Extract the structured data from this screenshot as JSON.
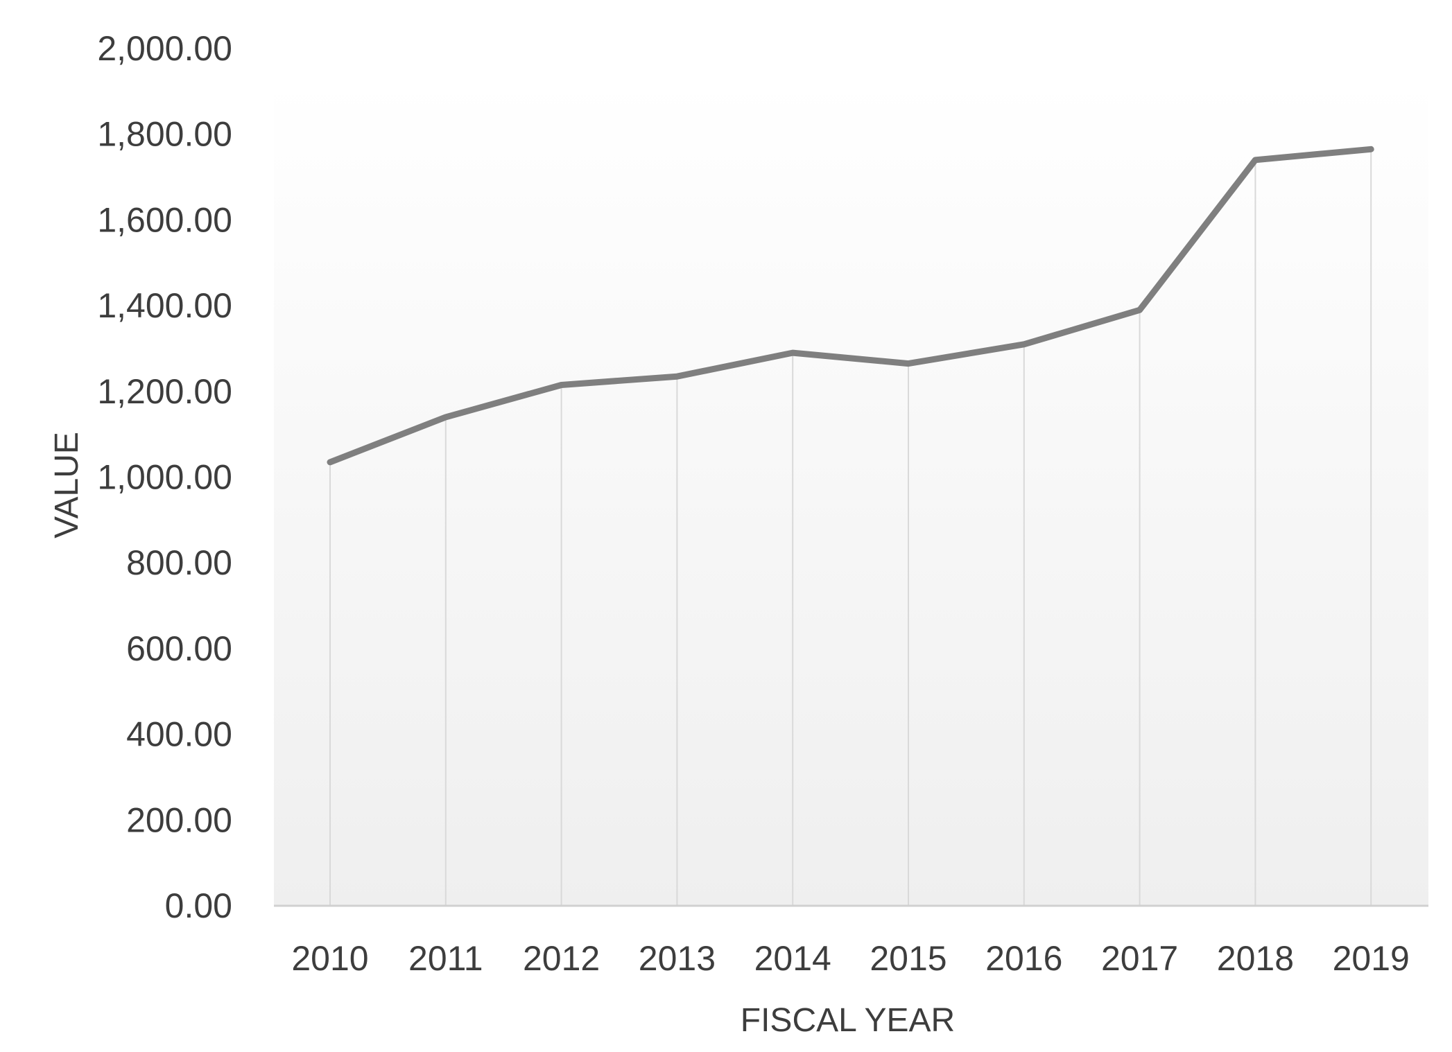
{
  "chart_data": {
    "type": "line",
    "title": "",
    "xlabel": "FISCAL YEAR",
    "ylabel": "VALUE",
    "categories": [
      "2010",
      "2011",
      "2012",
      "2013",
      "2014",
      "2015",
      "2016",
      "2017",
      "2018",
      "2019"
    ],
    "series": [
      {
        "values": [
          1035,
          1140,
          1215,
          1235,
          1290,
          1265,
          1310,
          1390,
          1740,
          1765
        ]
      }
    ],
    "ylim": [
      0,
      2000
    ],
    "yticks": [
      "0.00",
      "200.00",
      "400.00",
      "600.00",
      "800.00",
      "1,000.00",
      "1,200.00",
      "1,400.00",
      "1,600.00",
      "1,800.00",
      "2,000.00"
    ],
    "ytick_values": [
      0,
      200,
      400,
      600,
      800,
      1000,
      1200,
      1400,
      1600,
      1800,
      2000
    ],
    "grid": "vertical drop lines",
    "legend": "none",
    "colors": {
      "line": "#7f7f7f",
      "droplines": "#d9d9d9",
      "axis": "#d0d0d0",
      "background_top": "#ffffff",
      "background_bottom": "#efefef"
    }
  }
}
